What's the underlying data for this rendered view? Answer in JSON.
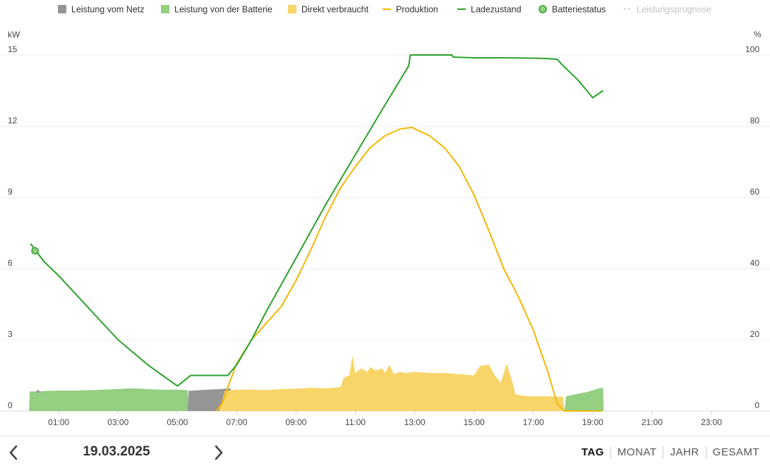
{
  "chart_data": {
    "type": "area",
    "legend_position": "top",
    "legend": [
      {
        "key": "netz",
        "label": "Leistung vom Netz",
        "marker": "square",
        "color": "#959595"
      },
      {
        "key": "batterie",
        "label": "Leistung von der Batterie",
        "marker": "square",
        "color": "#94cf82"
      },
      {
        "key": "direkt",
        "label": "Direkt verbraucht",
        "marker": "square",
        "color": "#f8d568"
      },
      {
        "key": "produktion",
        "label": "Produktion",
        "marker": "line",
        "color": "#f2b705"
      },
      {
        "key": "ladezustand",
        "label": "Ladezustand",
        "marker": "line",
        "color": "#2ba12b"
      },
      {
        "key": "batteriestatus",
        "label": "Batteriestatus",
        "marker": "circle",
        "color": "#2ba12b"
      },
      {
        "key": "prognose",
        "label": "Leistungsprognose",
        "marker": "dots",
        "color": "#cfcfcf",
        "disabled": true
      }
    ],
    "y_left": {
      "unit": "kW",
      "min": 0,
      "max": 15,
      "ticks": [
        0,
        3,
        6,
        9,
        12,
        15
      ]
    },
    "y_right": {
      "unit": "%",
      "min": 0,
      "max": 100,
      "ticks": [
        0,
        20,
        40,
        60,
        80,
        100
      ]
    },
    "x_axis": {
      "min_hour": 0,
      "max_hour": 24,
      "tick_hours": [
        1,
        3,
        5,
        7,
        9,
        11,
        13,
        15,
        17,
        19,
        21,
        23
      ],
      "tick_labels": [
        "01:00",
        "03:00",
        "05:00",
        "07:00",
        "09:00",
        "11:00",
        "13:00",
        "15:00",
        "17:00",
        "19:00",
        "21:00",
        "23:00"
      ]
    },
    "grid": true,
    "series": {
      "netz_kw": [
        [
          5.35,
          0
        ],
        [
          5.38,
          0.85
        ],
        [
          6.0,
          0.9
        ],
        [
          6.4,
          0.92
        ],
        [
          6.8,
          0.95
        ],
        [
          6.85,
          0
        ]
      ],
      "batterie_kw": [
        [
          0,
          0
        ],
        [
          0.02,
          0.82
        ],
        [
          0.5,
          0.84
        ],
        [
          1.0,
          0.86
        ],
        [
          1.5,
          0.86
        ],
        [
          2.0,
          0.88
        ],
        [
          2.5,
          0.9
        ],
        [
          3.0,
          0.93
        ],
        [
          3.5,
          0.96
        ],
        [
          4.0,
          0.92
        ],
        [
          4.5,
          0.9
        ],
        [
          5.0,
          0.9
        ],
        [
          5.35,
          0.88
        ],
        [
          5.38,
          0
        ],
        [
          18.05,
          0
        ],
        [
          18.1,
          0.62
        ],
        [
          18.4,
          0.7
        ],
        [
          18.8,
          0.8
        ],
        [
          19.2,
          0.95
        ],
        [
          19.35,
          0.98
        ],
        [
          19.37,
          0
        ]
      ],
      "direkt_kw": [
        [
          6.4,
          0
        ],
        [
          6.5,
          0.4
        ],
        [
          6.6,
          0.85
        ],
        [
          7.0,
          0.9
        ],
        [
          7.5,
          0.9
        ],
        [
          8.0,
          0.88
        ],
        [
          8.5,
          0.92
        ],
        [
          9.0,
          0.94
        ],
        [
          9.5,
          0.98
        ],
        [
          10.0,
          0.96
        ],
        [
          10.5,
          1.0
        ],
        [
          10.6,
          1.4
        ],
        [
          10.8,
          1.5
        ],
        [
          10.9,
          2.35
        ],
        [
          11.0,
          1.6
        ],
        [
          11.2,
          1.8
        ],
        [
          11.4,
          1.65
        ],
        [
          11.5,
          1.85
        ],
        [
          11.7,
          1.7
        ],
        [
          11.9,
          1.8
        ],
        [
          12.0,
          1.6
        ],
        [
          12.15,
          1.95
        ],
        [
          12.3,
          1.55
        ],
        [
          12.5,
          1.65
        ],
        [
          12.7,
          1.6
        ],
        [
          13.0,
          1.65
        ],
        [
          13.5,
          1.6
        ],
        [
          14.0,
          1.6
        ],
        [
          14.5,
          1.55
        ],
        [
          15.0,
          1.5
        ],
        [
          15.2,
          1.9
        ],
        [
          15.5,
          1.95
        ],
        [
          15.7,
          1.5
        ],
        [
          15.9,
          1.2
        ],
        [
          16.1,
          2.0
        ],
        [
          16.3,
          1.2
        ],
        [
          16.4,
          0.7
        ],
        [
          16.8,
          0.62
        ],
        [
          17.5,
          0.62
        ],
        [
          18.0,
          0.6
        ],
        [
          18.05,
          0
        ]
      ],
      "produktion_kw": [
        [
          6.3,
          0
        ],
        [
          6.5,
          0.3
        ],
        [
          6.7,
          1.0
        ],
        [
          7.0,
          2.0
        ],
        [
          7.5,
          3.0
        ],
        [
          8.0,
          3.7
        ],
        [
          8.5,
          4.4
        ],
        [
          9.0,
          5.5
        ],
        [
          9.5,
          6.8
        ],
        [
          10.0,
          8.2
        ],
        [
          10.5,
          9.4
        ],
        [
          11.0,
          10.3
        ],
        [
          11.5,
          11.1
        ],
        [
          12.0,
          11.6
        ],
        [
          12.5,
          11.88
        ],
        [
          12.9,
          11.95
        ],
        [
          13.5,
          11.6
        ],
        [
          14.0,
          11.1
        ],
        [
          14.5,
          10.3
        ],
        [
          15.0,
          9.1
        ],
        [
          15.5,
          7.6
        ],
        [
          16.0,
          6.0
        ],
        [
          16.5,
          4.8
        ],
        [
          17.0,
          3.4
        ],
        [
          17.5,
          1.6
        ],
        [
          17.8,
          0.3
        ],
        [
          18.05,
          0
        ],
        [
          19.3,
          0
        ]
      ],
      "ladezustand_pct": [
        [
          0.05,
          47
        ],
        [
          0.5,
          42
        ],
        [
          1.0,
          38
        ],
        [
          2.0,
          29
        ],
        [
          3.0,
          20
        ],
        [
          4.0,
          13
        ],
        [
          5.0,
          7
        ],
        [
          5.45,
          10
        ],
        [
          6.7,
          10
        ],
        [
          7.0,
          13
        ],
        [
          7.5,
          20
        ],
        [
          8.0,
          28
        ],
        [
          9.0,
          43
        ],
        [
          10.0,
          58
        ],
        [
          11.0,
          72
        ],
        [
          12.0,
          86
        ],
        [
          12.8,
          97
        ],
        [
          12.85,
          100
        ],
        [
          14.25,
          100
        ],
        [
          14.3,
          99.4
        ],
        [
          15.0,
          99.2
        ],
        [
          16.0,
          99.2
        ],
        [
          17.0,
          99.1
        ],
        [
          17.5,
          99.0
        ],
        [
          17.8,
          98.8
        ],
        [
          18.0,
          97
        ],
        [
          18.5,
          93
        ],
        [
          19.0,
          88
        ],
        [
          19.35,
          90
        ]
      ],
      "batteriestatus_pct": [
        [
          0.2,
          45
        ]
      ],
      "netz_marker_kw": [
        [
          0.3,
          0.82
        ]
      ]
    }
  },
  "footer": {
    "date": "19.03.2025",
    "prev_icon": "chevron-left-icon",
    "next_icon": "chevron-right-icon",
    "periods": [
      {
        "label": "TAG",
        "active": true
      },
      {
        "label": "MONAT",
        "active": false
      },
      {
        "label": "JAHR",
        "active": false
      },
      {
        "label": "GESAMT",
        "active": false
      }
    ]
  }
}
